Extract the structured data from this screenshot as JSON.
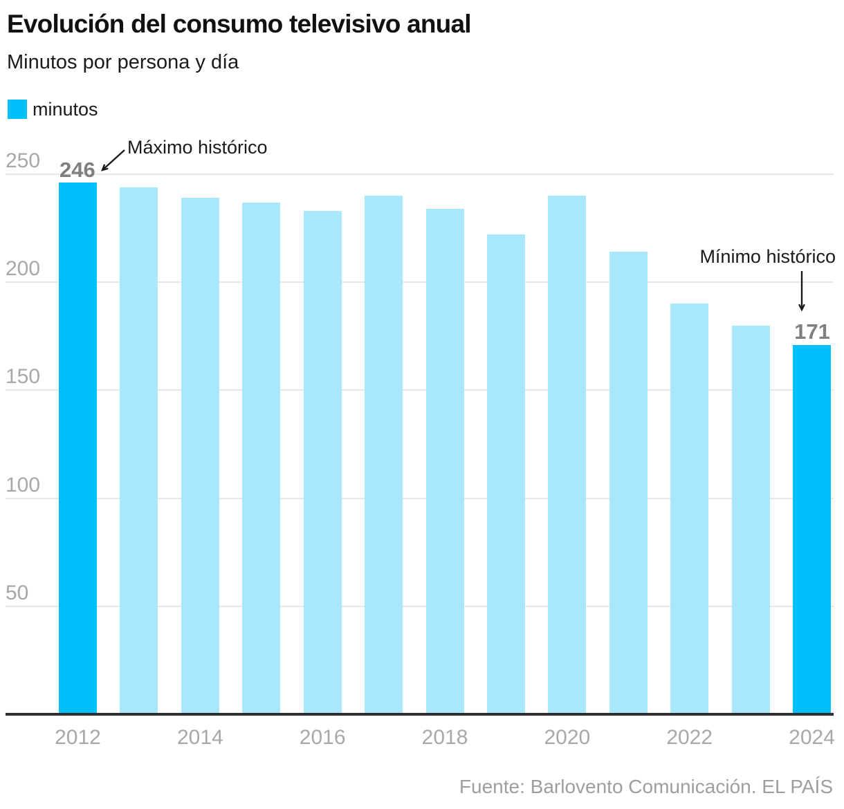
{
  "header": {
    "title": "Evolución del consumo televisivo anual",
    "subtitle": "Minutos por persona y día"
  },
  "legend": {
    "label": "minutos",
    "swatch_color": "#00c0fc"
  },
  "footer": {
    "source": "Fuente: Barlovento Comunicación. EL PAÍS"
  },
  "colors": {
    "bar_light": "#a9e7fc",
    "bar_highlight": "#00c0fc",
    "gridline": "#e7e7e7",
    "axis": "#2e2e2e",
    "tick_text": "#a8a8a8",
    "value_label_text": "#7f7f7f",
    "annotation_text": "#1a1a1a",
    "footer_text": "#9e9e9e"
  },
  "chart_data": {
    "type": "bar",
    "title": "Evolución del consumo televisivo anual",
    "subtitle": "Minutos por persona y día",
    "unit": "minutos por persona y día",
    "categories": [
      "2012",
      "2013",
      "2014",
      "2015",
      "2016",
      "2017",
      "2018",
      "2019",
      "2020",
      "2021",
      "2022",
      "2023",
      "2024"
    ],
    "values": [
      246,
      244,
      239,
      237,
      233,
      240,
      234,
      222,
      240,
      214,
      190,
      180,
      171
    ],
    "highlighted_categories": [
      "2012",
      "2024"
    ],
    "x_tick_labels": [
      "2012",
      "2014",
      "2016",
      "2018",
      "2020",
      "2022",
      "2024"
    ],
    "y_ticks": [
      250,
      200,
      150,
      100,
      50
    ],
    "ylim": [
      0,
      250
    ],
    "grid": true,
    "legend_position": "top-left",
    "bar_color": "#a9e7fc",
    "highlight_color": "#00c0fc",
    "annotations": [
      {
        "text": "Máximo histórico",
        "target_year": "2012",
        "value": 246,
        "value_label": "246"
      },
      {
        "text": "Mínimo histórico",
        "target_year": "2024",
        "value": 171,
        "value_label": "171"
      }
    ],
    "source": "Fuente: Barlovento Comunicación. EL PAÍS"
  }
}
